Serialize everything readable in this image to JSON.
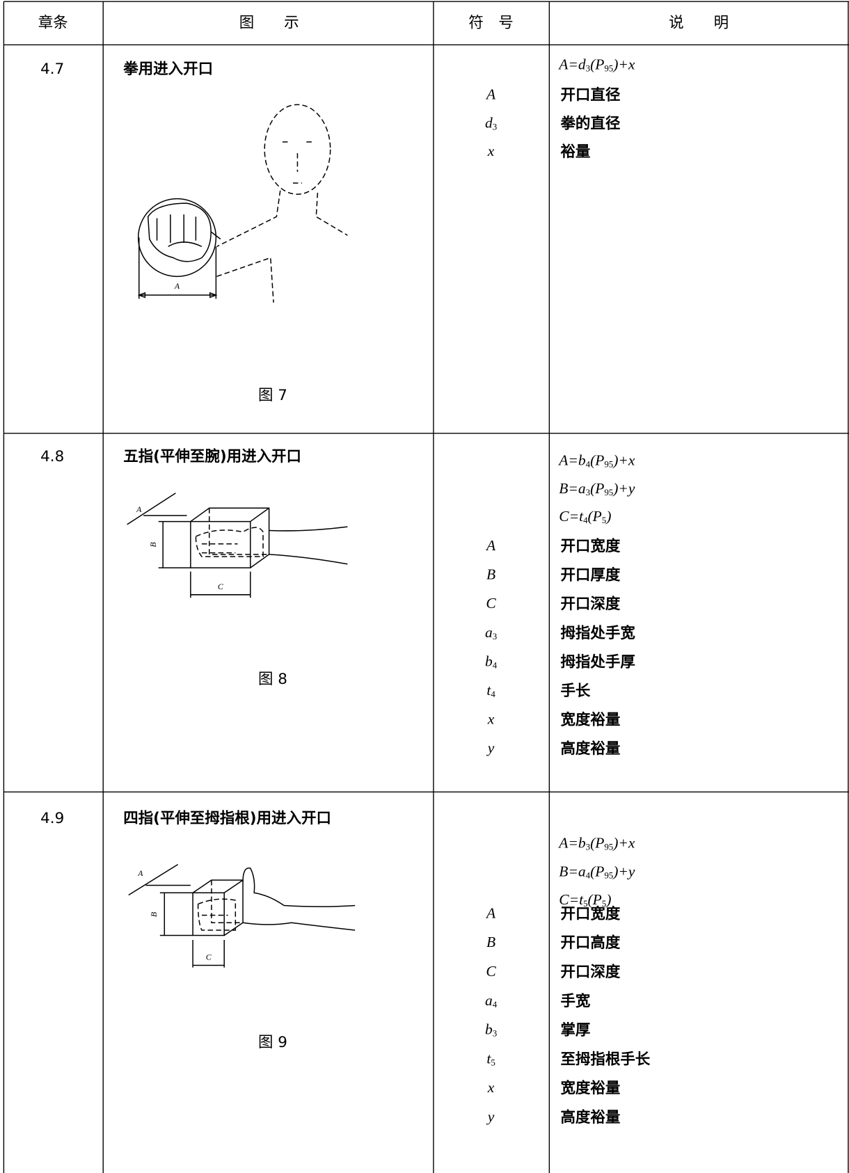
{
  "header": [
    "章条",
    "图　　示",
    "符　号",
    "说　　明"
  ],
  "rows": [
    {
      "clause": "4.7",
      "caption": "拳用进入开口",
      "figure": "图 7",
      "figure_labels": [
        "A"
      ],
      "formulas": [
        [
          "A=d",
          "3",
          "(P",
          "95",
          ")+x"
        ]
      ],
      "symbols": [
        [
          "A"
        ],
        [
          "d",
          "3"
        ],
        [
          "x"
        ]
      ],
      "descriptions": [
        "开口直径",
        "拳的直径",
        "裕量"
      ]
    },
    {
      "clause": "4.8",
      "caption": "五指(平伸至腕)用进入开口",
      "figure": "图 8",
      "figure_labels": [
        "A",
        "B",
        "C"
      ],
      "formulas": [
        [
          "A=b",
          "4",
          "(P",
          "95",
          ")+x"
        ],
        [
          "B=a",
          "3",
          "(P",
          "95",
          ")+y"
        ],
        [
          "C=t",
          "4",
          "(P",
          "5",
          ")"
        ]
      ],
      "symbols": [
        [
          "A"
        ],
        [
          "B"
        ],
        [
          "C"
        ],
        [
          "a",
          "3"
        ],
        [
          "b",
          "4"
        ],
        [
          "t",
          "4"
        ],
        [
          "x"
        ],
        [
          "y"
        ]
      ],
      "descriptions": [
        "开口宽度",
        "开口厚度",
        "开口深度",
        "拇指处手宽",
        "拇指处手厚",
        "手长",
        "宽度裕量",
        "高度裕量"
      ]
    },
    {
      "clause": "4.9",
      "caption": "四指(平伸至拇指根)用进入开口",
      "figure": "图 9",
      "figure_labels": [
        "A",
        "B",
        "C"
      ],
      "formulas": [
        [
          "A=b",
          "3",
          "(P",
          "95",
          ")+x"
        ],
        [
          "B=a",
          "4",
          "(P",
          "95",
          ")+y"
        ],
        [
          "C=t",
          "5",
          "(P",
          "5",
          ")"
        ]
      ],
      "symbols": [
        [
          "A"
        ],
        [
          "B"
        ],
        [
          "C"
        ],
        [
          "a",
          "4"
        ],
        [
          "b",
          "3"
        ],
        [
          "t",
          "5"
        ],
        [
          "x"
        ],
        [
          "y"
        ]
      ],
      "descriptions": [
        "开口宽度",
        "开口高度",
        "开口深度",
        "手宽",
        "掌厚",
        "至拇指根手长",
        "宽度裕量",
        "高度裕量"
      ]
    }
  ]
}
